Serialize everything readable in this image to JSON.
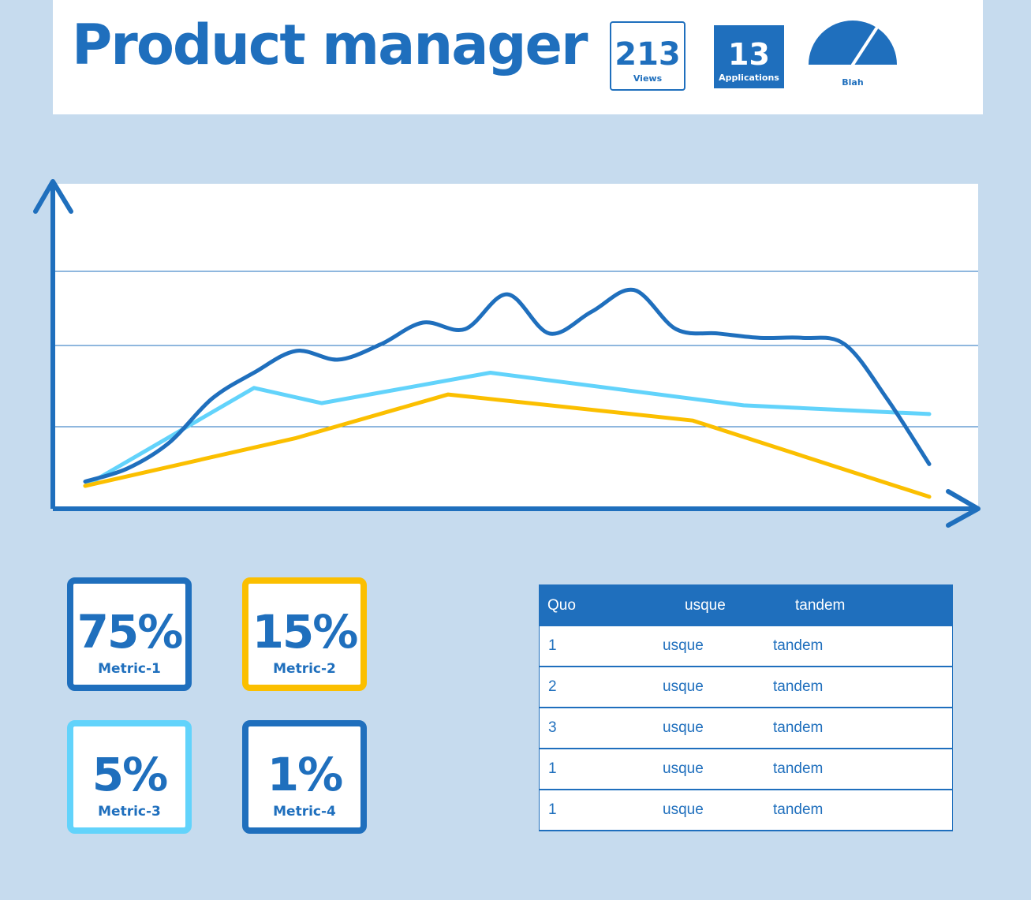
{
  "header": {
    "title": "Product manager",
    "stats": [
      {
        "value": "213",
        "label": "Views"
      },
      {
        "value": "13",
        "label": "Applications"
      }
    ],
    "gauge": {
      "label": "Blah",
      "icon": "gauge-icon"
    }
  },
  "colors": {
    "primary": "#1f6fbd",
    "yellow": "#fbbf00",
    "light_blue": "#62d3fb",
    "background": "#c6dbee"
  },
  "chart_data": {
    "type": "line",
    "title": "",
    "xlabel": "",
    "ylabel": "",
    "grid": true,
    "series": [
      {
        "color": "#1f6fbd",
        "x": [
          0,
          5,
          10,
          15,
          20,
          25,
          30,
          35,
          40,
          45,
          50,
          55,
          60,
          65,
          70,
          75,
          80,
          85,
          90,
          95,
          100
        ],
        "y": [
          2,
          8,
          20,
          40,
          52,
          62,
          58,
          65,
          75,
          72,
          88,
          70,
          80,
          90,
          72,
          70,
          68,
          68,
          65,
          40,
          10
        ]
      },
      {
        "color": "#62d3fb",
        "x": [
          0,
          20,
          28,
          48,
          78,
          100
        ],
        "y": [
          0,
          45,
          38,
          52,
          37,
          33
        ]
      },
      {
        "color": "#fbbf00",
        "x": [
          0,
          25,
          43,
          72,
          100
        ],
        "y": [
          0,
          22,
          42,
          30,
          -5
        ]
      }
    ]
  },
  "metrics": [
    {
      "value": "75%",
      "label": "Metric-1"
    },
    {
      "value": "15%",
      "label": "Metric-2"
    },
    {
      "value": "5%",
      "label": "Metric-3"
    },
    {
      "value": "1%",
      "label": "Metric-4"
    }
  ],
  "table": {
    "headers": [
      "Quo",
      "usque",
      "tandem"
    ],
    "rows": [
      [
        "1",
        "usque",
        "tandem"
      ],
      [
        "2",
        "usque",
        "tandem"
      ],
      [
        "3",
        "usque",
        "tandem"
      ],
      [
        "1",
        "usque",
        "tandem"
      ],
      [
        "1",
        "usque",
        "tandem"
      ]
    ]
  }
}
